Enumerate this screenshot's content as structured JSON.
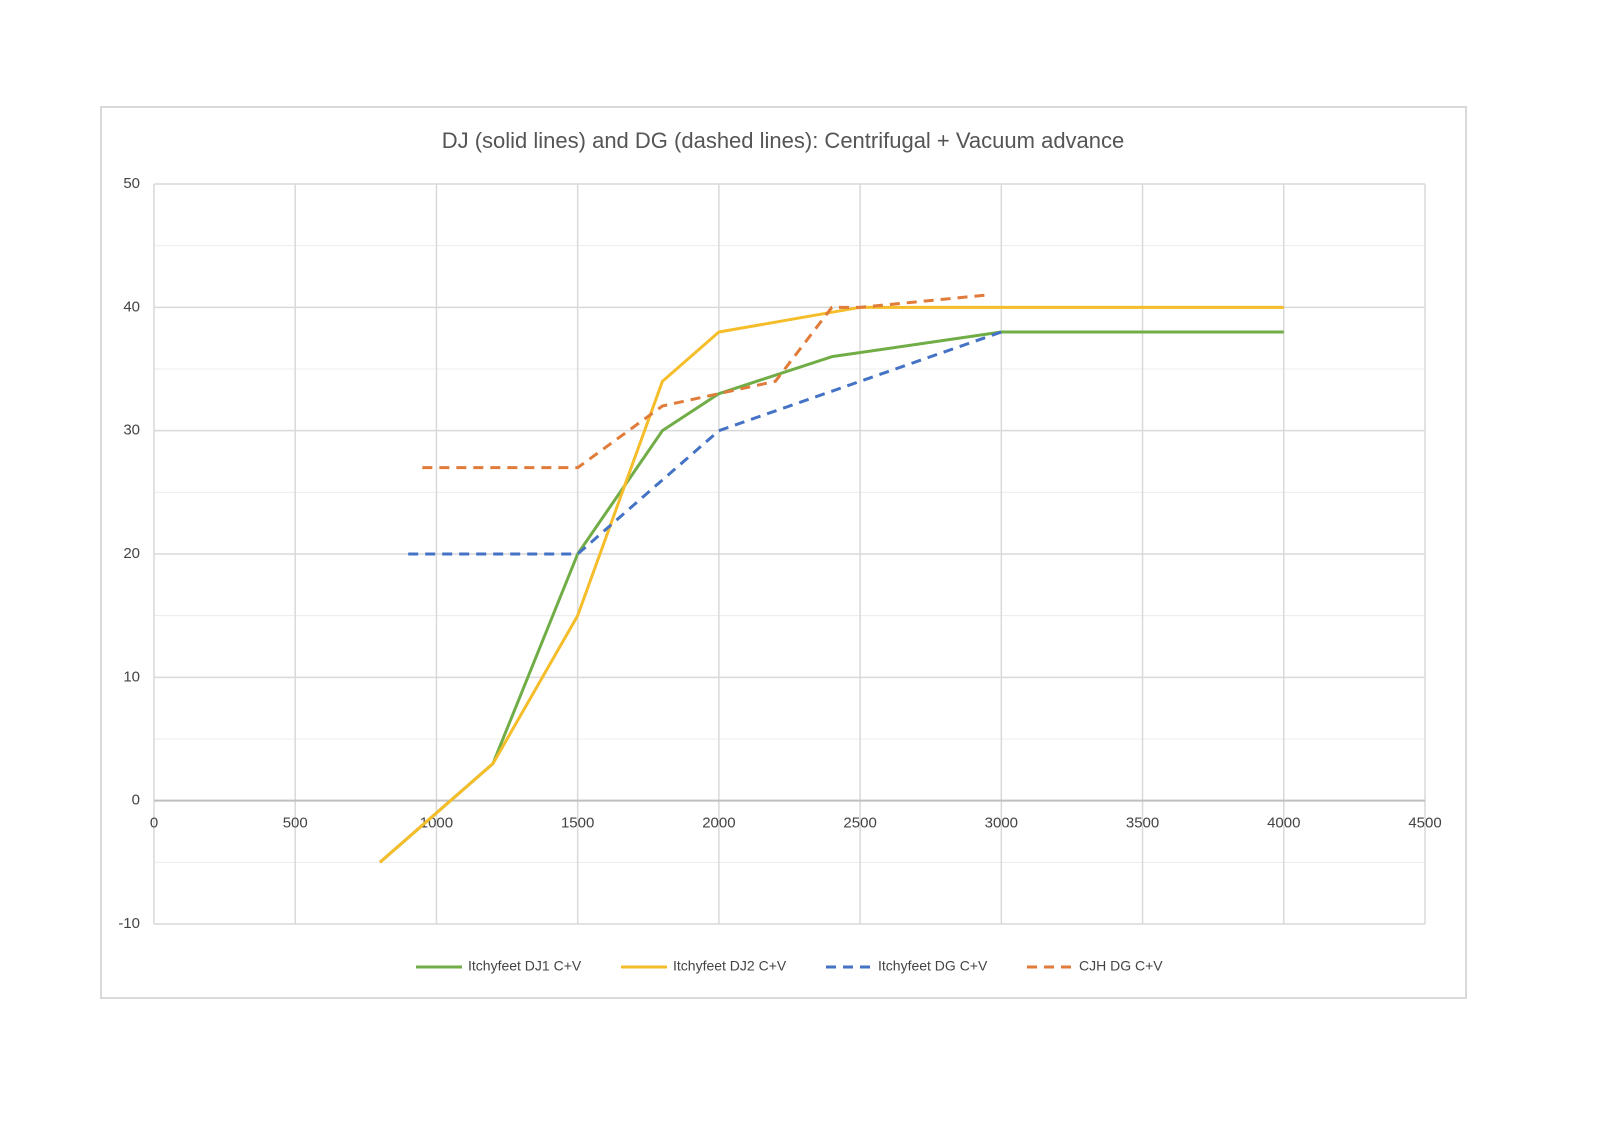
{
  "chart_data": {
    "type": "line",
    "title": "DJ (solid lines) and DG (dashed lines): Centrifugal + Vacuum advance",
    "xlim": [
      0,
      4500
    ],
    "xticks": [
      0,
      500,
      1000,
      1500,
      2000,
      2500,
      3000,
      3500,
      4000,
      4500
    ],
    "ylim": [
      -10,
      50
    ],
    "yticks": [
      -10,
      0,
      10,
      20,
      30,
      40,
      50
    ],
    "grid": true,
    "legend": "bottom",
    "series": [
      {
        "name": "Itchyfeet DJ1 C+V",
        "color": "#70ad47",
        "dash": false,
        "x": [
          800,
          1200,
          1500,
          1800,
          2000,
          2400,
          3000,
          4000
        ],
        "values": [
          -5,
          3,
          20,
          30,
          33,
          36,
          38,
          38
        ]
      },
      {
        "name": "Itchyfeet DJ2 C+V",
        "color": "#f5bd2a",
        "dash": false,
        "x": [
          800,
          1200,
          1500,
          1800,
          2000,
          2500,
          3000,
          4000
        ],
        "values": [
          -5,
          3,
          15,
          34,
          38,
          40,
          40,
          40
        ]
      },
      {
        "name": "Itchyfeet DG C+V",
        "color": "#4472c4",
        "dash": true,
        "x": [
          900,
          1500,
          2000,
          3000
        ],
        "values": [
          20,
          20,
          30,
          38
        ]
      },
      {
        "name": "CJH DG C+V",
        "color": "#e07b39",
        "dash": true,
        "x": [
          950,
          1500,
          1800,
          2000,
          2200,
          2400,
          2500,
          2950
        ],
        "values": [
          27,
          27,
          32,
          33,
          34,
          40,
          40,
          41
        ]
      }
    ]
  }
}
